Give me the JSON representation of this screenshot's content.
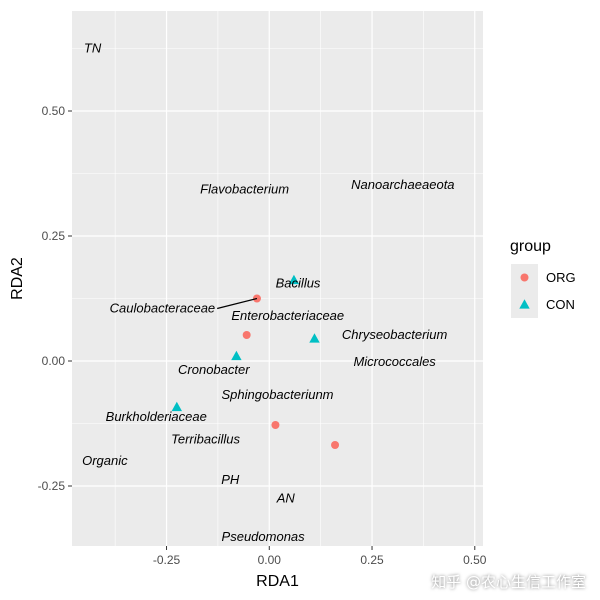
{
  "chart_data": {
    "type": "scatter",
    "xlabel": "RDA1",
    "ylabel": "RDA2",
    "xlim": [
      -0.48,
      0.52
    ],
    "ylim": [
      -0.37,
      0.7
    ],
    "x_ticks": [
      -0.25,
      0.0,
      0.25,
      0.5
    ],
    "x_tick_labels": [
      "-0.25",
      "0.00",
      "0.25",
      "0.50"
    ],
    "y_ticks": [
      -0.25,
      0.0,
      0.25,
      0.5
    ],
    "y_tick_labels": [
      "-0.25",
      "0.00",
      "0.25",
      "0.50"
    ],
    "grid": true,
    "legend": {
      "title": "group",
      "placement": "right",
      "entries": [
        {
          "label": "ORG",
          "shape": "circle",
          "color": "#F8766D"
        },
        {
          "label": "CON",
          "shape": "triangle",
          "color": "#00BFC4"
        }
      ]
    },
    "series": [
      {
        "name": "ORG",
        "shape": "circle",
        "color": "#F8766D",
        "points": [
          {
            "x": -0.03,
            "y": 0.125
          },
          {
            "x": -0.055,
            "y": 0.052
          },
          {
            "x": 0.015,
            "y": -0.128
          },
          {
            "x": 0.16,
            "y": -0.168
          }
        ]
      },
      {
        "name": "CON",
        "shape": "triangle",
        "color": "#00BFC4",
        "points": [
          {
            "x": 0.06,
            "y": 0.162
          },
          {
            "x": 0.11,
            "y": 0.045
          },
          {
            "x": -0.08,
            "y": 0.01
          },
          {
            "x": -0.225,
            "y": -0.092
          }
        ]
      }
    ],
    "annotations": [
      {
        "text": "TN",
        "x": -0.43,
        "y": 0.625
      },
      {
        "text": "Flavobacterium",
        "x": -0.06,
        "y": 0.343
      },
      {
        "text": "Nanoarchaeaeota",
        "x": 0.325,
        "y": 0.352
      },
      {
        "text": "Bacillus",
        "x": 0.07,
        "y": 0.155
      },
      {
        "text": "Caulobacteraceae",
        "x": -0.26,
        "y": 0.105,
        "leader_to": {
          "x": -0.03,
          "y": 0.125
        }
      },
      {
        "text": "Enterobacteriaceae",
        "x": 0.045,
        "y": 0.09
      },
      {
        "text": "Chryseobacterium",
        "x": 0.305,
        "y": 0.052
      },
      {
        "text": "Micrococcales",
        "x": 0.305,
        "y": -0.002
      },
      {
        "text": "Cronobacter",
        "x": -0.135,
        "y": -0.018
      },
      {
        "text": "Sphingobacteriunm",
        "x": 0.02,
        "y": -0.068
      },
      {
        "text": "Burkholderiaceae",
        "x": -0.275,
        "y": -0.112
      },
      {
        "text": "Terribacillus",
        "x": -0.155,
        "y": -0.157
      },
      {
        "text": "Organic",
        "x": -0.4,
        "y": -0.2
      },
      {
        "text": "PH",
        "x": -0.095,
        "y": -0.238
      },
      {
        "text": "AN",
        "x": 0.04,
        "y": -0.275
      },
      {
        "text": "Pseudomonas",
        "x": -0.015,
        "y": -0.352
      }
    ]
  },
  "watermark": {
    "text": "知乎 @农心生信工作室"
  }
}
